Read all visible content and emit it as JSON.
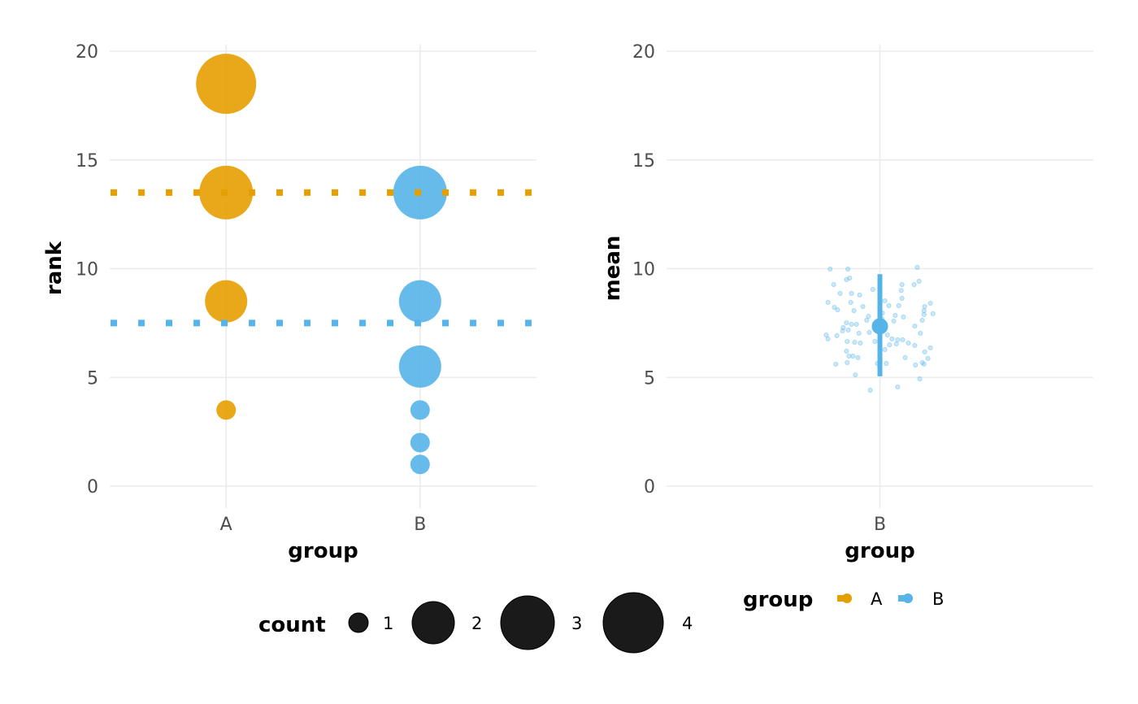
{
  "chart_data": [
    {
      "type": "scatter",
      "xlabel": "group",
      "ylabel": "rank",
      "categories": [
        "A",
        "B"
      ],
      "ylim": [
        -0.9,
        20.5
      ],
      "yticks": [
        0,
        5,
        10,
        15,
        20
      ],
      "grid": true,
      "points": [
        {
          "group": "A",
          "rank": 18.5,
          "count": 4
        },
        {
          "group": "A",
          "rank": 13.5,
          "count": 3
        },
        {
          "group": "A",
          "rank": 8.5,
          "count": 2
        },
        {
          "group": "A",
          "rank": 3.5,
          "count": 1
        },
        {
          "group": "B",
          "rank": 13.5,
          "count": 3
        },
        {
          "group": "B",
          "rank": 8.5,
          "count": 2
        },
        {
          "group": "B",
          "rank": 5.5,
          "count": 2
        },
        {
          "group": "B",
          "rank": 3.5,
          "count": 1
        },
        {
          "group": "B",
          "rank": 2,
          "count": 1
        },
        {
          "group": "B",
          "rank": 1,
          "count": 1
        }
      ],
      "mean_lines": [
        {
          "group": "A",
          "value": 13.5,
          "style": "dotted"
        },
        {
          "group": "B",
          "value": 7.5,
          "style": "dotted"
        }
      ]
    },
    {
      "type": "scatter",
      "xlabel": "group",
      "ylabel": "mean",
      "categories": [
        "B"
      ],
      "ylim": [
        -0.9,
        20.5
      ],
      "yticks": [
        0,
        5,
        10,
        15,
        20
      ],
      "grid": true,
      "summary": {
        "group": "B",
        "mean": 7.35,
        "lower": 5.05,
        "upper": 9.75
      },
      "jitter_points": [
        [
          -0.14,
          9.98
        ],
        [
          -0.09,
          9.98
        ],
        [
          0.105,
          10.06
        ],
        [
          -0.085,
          9.57
        ],
        [
          -0.094,
          9.5
        ],
        [
          0.062,
          9.27
        ],
        [
          0.11,
          9.42
        ],
        [
          -0.13,
          9.27
        ],
        [
          0.096,
          9.27
        ],
        [
          -0.112,
          8.86
        ],
        [
          -0.08,
          8.86
        ],
        [
          -0.057,
          8.79
        ],
        [
          -0.02,
          9.05
        ],
        [
          0.06,
          9.0
        ],
        [
          0.062,
          8.64
        ],
        [
          -0.146,
          8.45
        ],
        [
          -0.082,
          8.45
        ],
        [
          0.014,
          8.52
        ],
        [
          0.142,
          8.41
        ],
        [
          -0.128,
          8.22
        ],
        [
          -0.119,
          8.11
        ],
        [
          -0.073,
          8.07
        ],
        [
          0.025,
          8.3
        ],
        [
          0.053,
          8.3
        ],
        [
          0.126,
          8.26
        ],
        [
          0.124,
          8.07
        ],
        [
          0.124,
          7.89
        ],
        [
          0.149,
          7.93
        ],
        [
          -0.032,
          7.81
        ],
        [
          0.043,
          7.85
        ],
        [
          0.066,
          7.78
        ],
        [
          0.119,
          7.63
        ],
        [
          -0.037,
          7.63
        ],
        [
          0.005,
          7.7
        ],
        [
          0.039,
          7.59
        ],
        [
          0.098,
          7.36
        ],
        [
          -0.094,
          7.51
        ],
        [
          -0.08,
          7.44
        ],
        [
          -0.066,
          7.44
        ],
        [
          -0.103,
          7.29
        ],
        [
          -0.105,
          7.14
        ],
        [
          -0.089,
          7.18
        ],
        [
          -0.03,
          7.07
        ],
        [
          -0.059,
          7.03
        ],
        [
          0.114,
          7.03
        ],
        [
          -0.151,
          6.95
        ],
        [
          -0.146,
          6.77
        ],
        [
          -0.121,
          6.92
        ],
        [
          0.021,
          6.95
        ],
        [
          0.034,
          6.77
        ],
        [
          0.05,
          6.73
        ],
        [
          0.064,
          6.73
        ],
        [
          -0.092,
          6.65
        ],
        [
          -0.071,
          6.62
        ],
        [
          -0.055,
          6.58
        ],
        [
          -0.014,
          6.65
        ],
        [
          0.027,
          6.5
        ],
        [
          0.046,
          6.54
        ],
        [
          0.08,
          6.58
        ],
        [
          0.098,
          6.47
        ],
        [
          0.142,
          6.36
        ],
        [
          -0.094,
          6.21
        ],
        [
          0.126,
          6.17
        ],
        [
          -0.087,
          5.98
        ],
        [
          -0.076,
          5.98
        ],
        [
          -0.062,
          5.91
        ],
        [
          0.071,
          5.91
        ],
        [
          0.135,
          5.87
        ],
        [
          -0.124,
          5.61
        ],
        [
          -0.092,
          5.68
        ],
        [
          -0.007,
          5.64
        ],
        [
          0.018,
          5.64
        ],
        [
          0.1,
          5.57
        ],
        [
          0.119,
          5.68
        ],
        [
          0.124,
          5.61
        ],
        [
          -0.069,
          5.12
        ],
        [
          0.112,
          4.93
        ],
        [
          0.05,
          4.56
        ],
        [
          -0.027,
          4.41
        ],
        [
          -0.016,
          7.25
        ],
        [
          0.007,
          7.96
        ],
        [
          0.014,
          6.28
        ],
        [
          -0.048,
          8.26
        ]
      ]
    }
  ],
  "legends": {
    "count": {
      "title": "count",
      "values": [
        1,
        2,
        3,
        4
      ]
    },
    "group": {
      "title": "group",
      "values": [
        "A",
        "B"
      ]
    }
  },
  "colors": {
    "A": "#E69F00",
    "B": "#56B4E9",
    "count_key": "#1a1a1a"
  }
}
